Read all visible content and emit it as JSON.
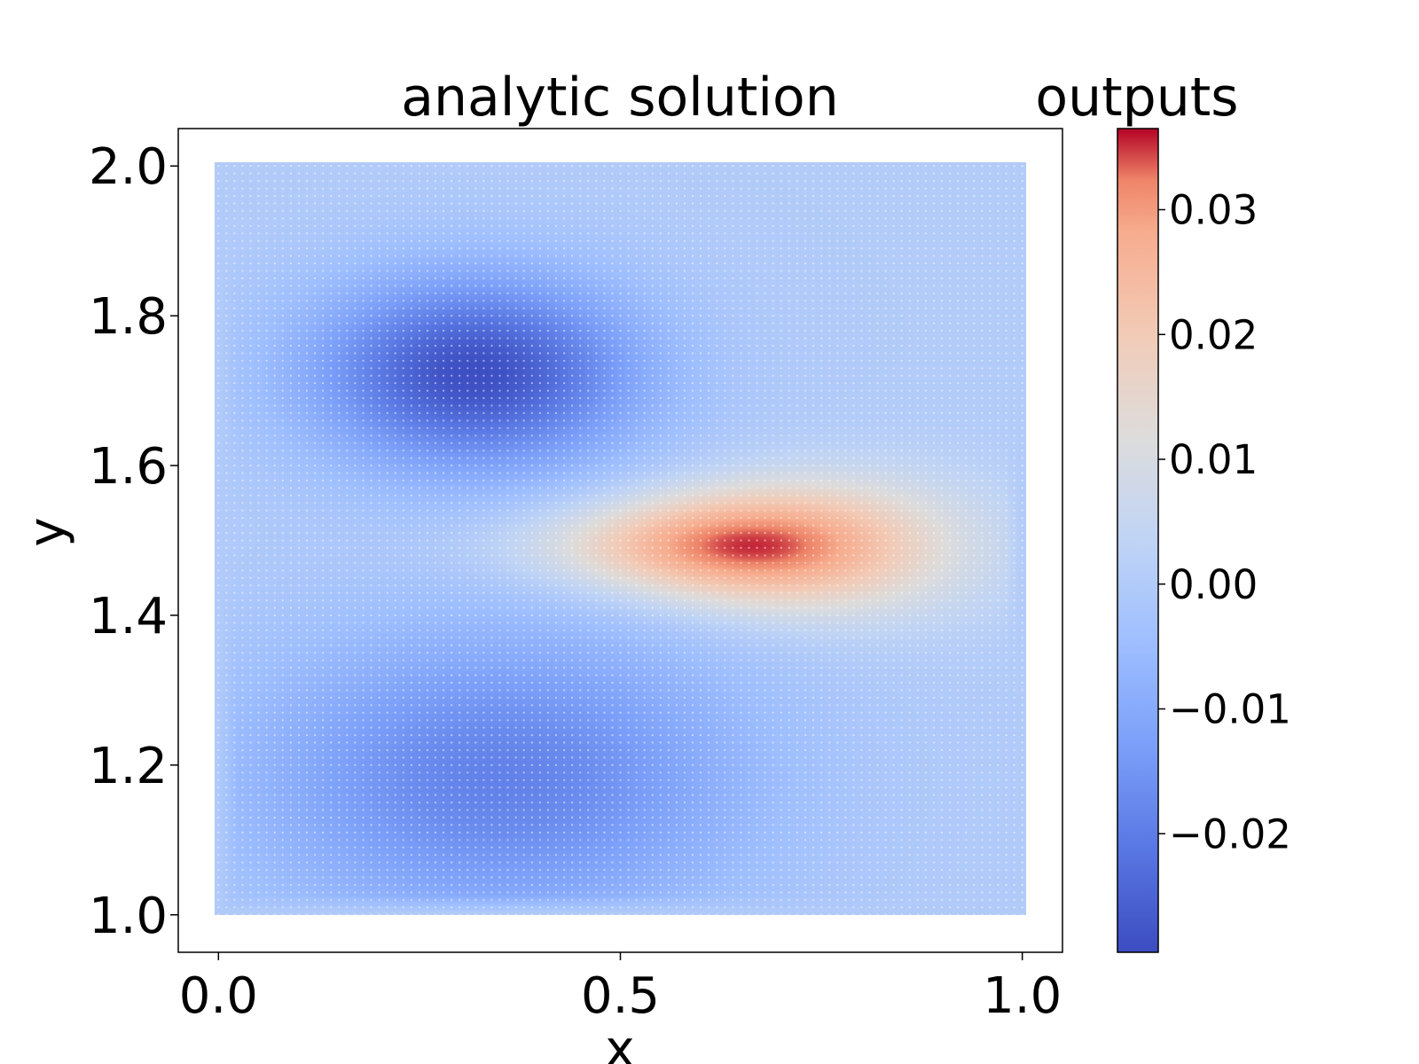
{
  "chart_data": {
    "type": "scatter",
    "title": "analytic solution",
    "xlabel": "x",
    "ylabel": "y",
    "xlim": [
      -0.05,
      1.05
    ],
    "ylim": [
      0.95,
      2.05
    ],
    "x_range": [
      0.0,
      1.0
    ],
    "y_range": [
      1.0,
      2.0
    ],
    "x_ticks": [
      "0.0",
      "0.5",
      "1.0"
    ],
    "x_tick_values": [
      0.0,
      0.5,
      1.0
    ],
    "y_ticks": [
      "1.0",
      "1.2",
      "1.4",
      "1.6",
      "1.8",
      "2.0"
    ],
    "y_tick_values": [
      1.0,
      1.2,
      1.4,
      1.6,
      1.8,
      2.0
    ],
    "grid": false,
    "colormap": "coolwarm",
    "colorbar": {
      "label": "outputs",
      "vmin": -0.0295,
      "vmax": 0.0365,
      "ticks": [
        "0.03",
        "0.02",
        "0.01",
        "0.00",
        "−0.01",
        "−0.02"
      ],
      "tick_values": [
        0.03,
        0.02,
        0.01,
        0.0,
        -0.01,
        -0.02
      ]
    },
    "grid_points": {
      "nx": 101,
      "ny": 101
    },
    "features": [
      {
        "label": "minimum",
        "x": 0.32,
        "y": 1.72,
        "value": -0.029
      },
      {
        "label": "maximum",
        "x": 0.66,
        "y": 1.49,
        "value": 0.036
      },
      {
        "label": "secondary minimum",
        "x": 0.35,
        "y": 1.18,
        "value": -0.02
      }
    ]
  }
}
